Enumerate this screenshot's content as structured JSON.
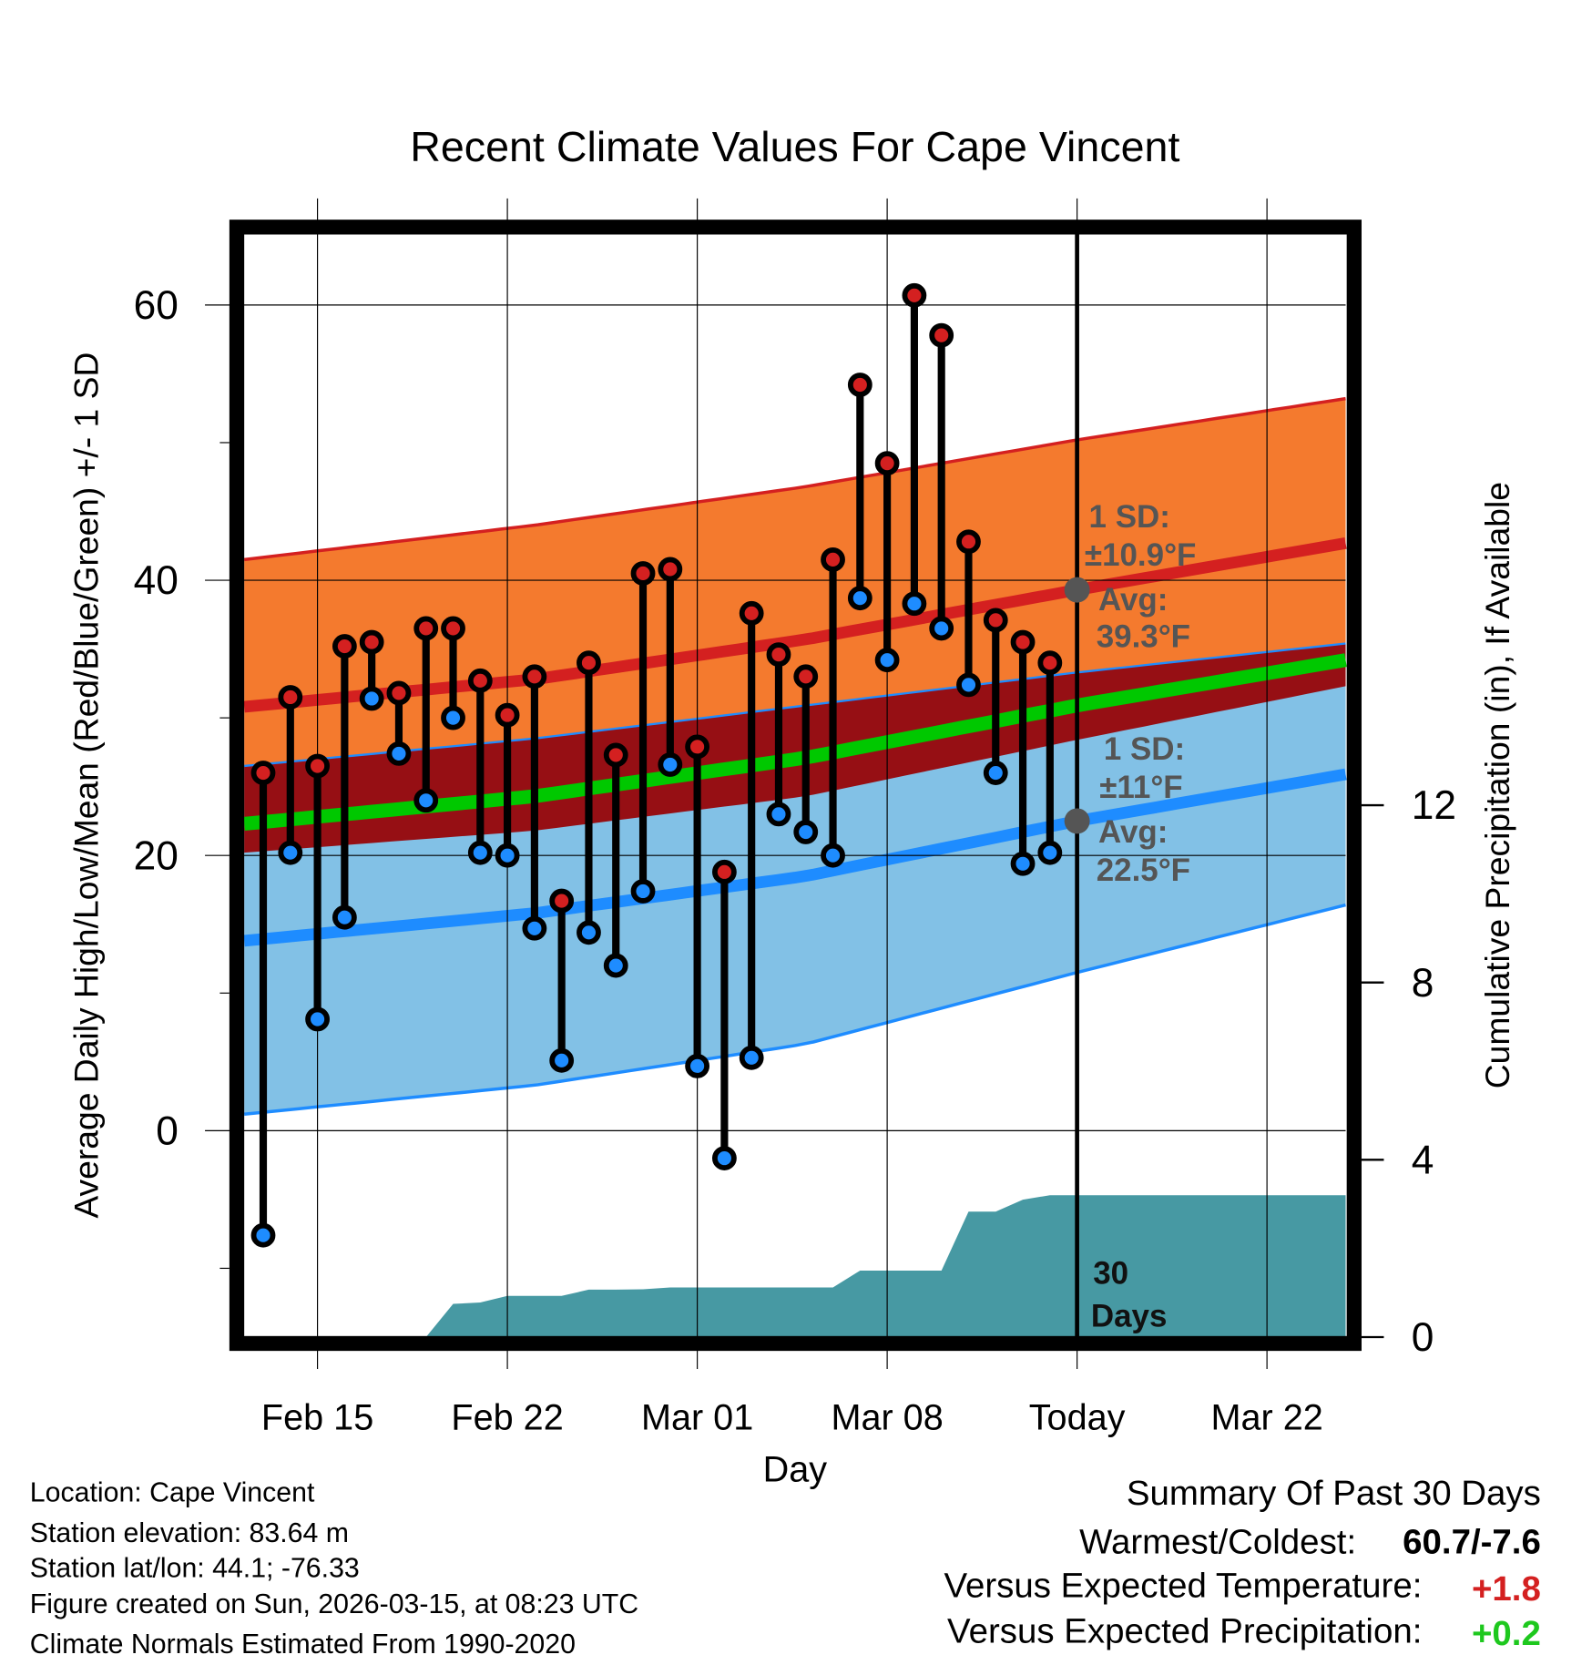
{
  "chart_data": {
    "type": "line",
    "title": "Recent Climate Values For Cape Vincent",
    "xlabel": "Day",
    "ylabel": "Average Daily High/Low/Mean (Red/Blue/Green) +/- 1 SD",
    "y2label": "Cumulative Precipitation (in), If Available",
    "ylim": [
      -15,
      65.2
    ],
    "y2lim": [
      0,
      24.9
    ],
    "yticks": [
      "60",
      "40",
      "20",
      "0"
    ],
    "yticks_values": [
      60,
      40,
      20,
      0
    ],
    "y2ticks": [
      "12",
      "8",
      "4",
      "0"
    ],
    "y2ticks_values": [
      12,
      8,
      4,
      0
    ],
    "xlim_days": [
      -0.7,
      39.9
    ],
    "xtick_labels": [
      "Feb 15",
      "Feb 22",
      "Mar 01",
      "Mar 08",
      "Today",
      "Mar 22"
    ],
    "xtick_days": [
      2,
      9,
      16,
      23,
      30,
      37
    ],
    "today_day": 30,
    "dates": [
      "Feb 13",
      "Feb 14",
      "Feb 15",
      "Feb 16",
      "Feb 17",
      "Feb 18",
      "Feb 19",
      "Feb 20",
      "Feb 21",
      "Feb 22",
      "Feb 23",
      "Feb 24",
      "Feb 25",
      "Feb 26",
      "Feb 27",
      "Feb 28",
      "Mar 01",
      "Mar 02",
      "Mar 03",
      "Mar 04",
      "Mar 05",
      "Mar 06",
      "Mar 07",
      "Mar 08",
      "Mar 09",
      "Mar 10",
      "Mar 11",
      "Mar 12",
      "Mar 13",
      "Mar 14"
    ],
    "highs": [
      26,
      31.5,
      26.5,
      35.2,
      35.5,
      31.8,
      36.5,
      36.5,
      32.7,
      30.2,
      33,
      16.7,
      34,
      27.3,
      40.5,
      40.8,
      27.9,
      18.8,
      37.6,
      34.6,
      33,
      41.5,
      54.2,
      48.5,
      60.7,
      57.8,
      42.8,
      37.1,
      35.5,
      34
    ],
    "lows": [
      -7.6,
      20.2,
      8.1,
      15.5,
      31.4,
      27.4,
      24,
      30,
      20.2,
      20,
      14.7,
      5.1,
      14.4,
      12,
      17.4,
      26.6,
      4.7,
      -2,
      5.3,
      23,
      21.7,
      20,
      38.7,
      34.2,
      38.3,
      36.5,
      32.4,
      26,
      19.4,
      20.2
    ],
    "cumulative_precip": [
      0,
      0,
      0,
      0,
      0,
      0,
      0,
      0.75,
      0.78,
      0.93,
      0.93,
      0.93,
      1.07,
      1.07,
      1.08,
      1.12,
      1.12,
      1.12,
      1.12,
      1.12,
      1.12,
      1.12,
      1.5,
      1.5,
      1.5,
      1.5,
      2.83,
      2.83,
      3.1,
      3.2
    ],
    "normals": {
      "days": [
        -0.7,
        10,
        20,
        30,
        39.9
      ],
      "high_mean": [
        30.8,
        32.8,
        35.7,
        39.3,
        42.7
      ],
      "high_plus_sd": [
        41.5,
        44,
        46.8,
        50.2,
        53.2
      ],
      "high_minus_sd": [
        20.2,
        21.8,
        24.3,
        28.4,
        32.3
      ],
      "low_plus_sd": [
        26.5,
        28.5,
        30.9,
        33.3,
        35.4
      ],
      "low_mean": [
        13.8,
        15.8,
        18.5,
        22.5,
        25.9
      ],
      "low_minus_sd": [
        1.2,
        3.3,
        6.3,
        11.5,
        16.4
      ],
      "mean": [
        22.3,
        24.3,
        27.1,
        30.9,
        34.2
      ]
    },
    "annotations": {
      "high_sd_label": "1 SD:",
      "high_sd_value": "±10.9°F",
      "high_avg_label": "Avg:",
      "high_avg_value": "39.3°F",
      "low_sd_label": "1 SD:",
      "low_sd_value": "±11°F",
      "low_avg_label": "Avg:",
      "low_avg_value": "22.5°F",
      "days_line1": "30",
      "days_line2": "Days"
    },
    "colors": {
      "high_band": "#f47a2e",
      "high_line": "#d42020",
      "overlap_band": "#960f14",
      "low_band": "#82c1e6",
      "low_line": "#1e8cff",
      "mean_line": "#00c800",
      "precip": "#4799a3",
      "high_marker": "#d42020",
      "low_marker": "#1e8cff"
    }
  },
  "footer": {
    "location": "Location: Cape Vincent",
    "elevation": "Station elevation: 83.64 m",
    "latlon": "Station lat/lon: 44.1; -76.33",
    "created": "Figure created on Sun, 2026-03-15, at 08:23 UTC",
    "normals": "Climate Normals Estimated From 1990-2020"
  },
  "summary": {
    "title": "Summary Of Past 30 Days",
    "warmest_label": "Warmest/Coldest:",
    "warmest_value": "60.7/-7.6",
    "temp_label": "Versus Expected Temperature:",
    "temp_value": "+1.8",
    "precip_label": "Versus Expected Precipitation:",
    "precip_value": "+0.2",
    "temp_color": "#d42020",
    "precip_color": "#1ec81e"
  }
}
